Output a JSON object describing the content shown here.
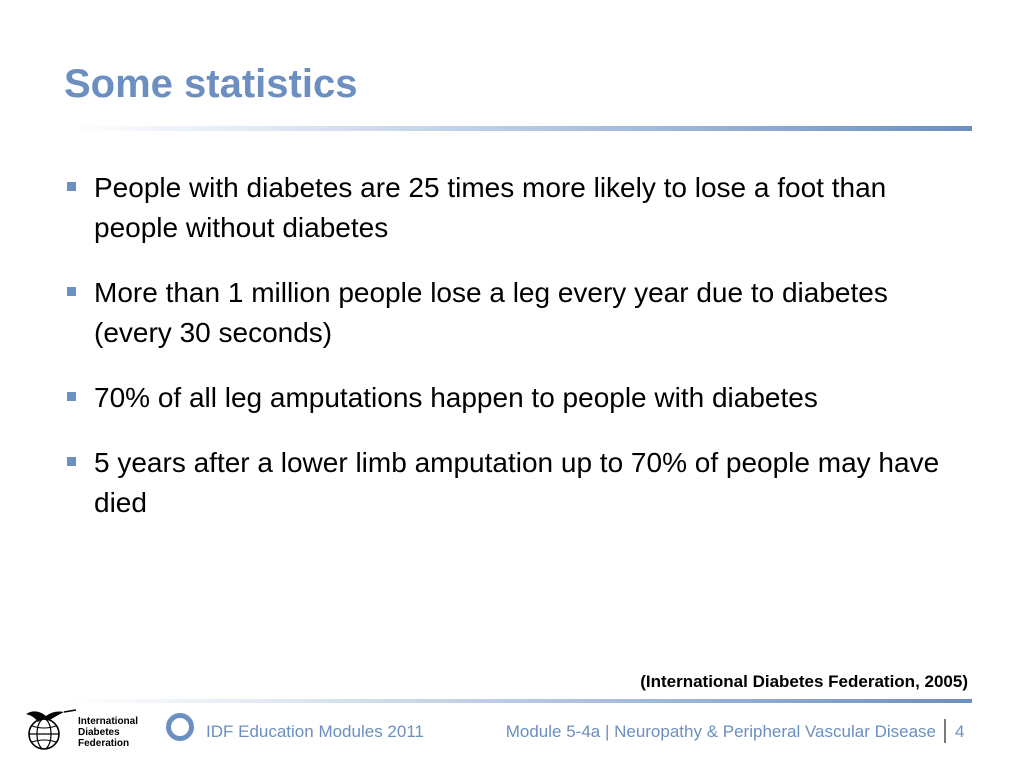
{
  "slide": {
    "title": "Some statistics",
    "bullets": [
      "People with diabetes are 25 times more likely to lose a foot than people without diabetes",
      " More than 1 million people lose a leg every year due to diabetes (every 30 seconds)",
      " 70% of all leg amputations happen to people with diabetes",
      "5 years after a lower limb amputation up to 70% of people may have died"
    ],
    "citation": "(International Diabetes Federation, 2005)"
  },
  "footer": {
    "logo_text": "International\nDiabetes\nFederation",
    "modules_label": "IDF Education Modules 2011",
    "module_title": "Module 5-4a | Neuropathy & Peripheral Vascular Disease",
    "page_number": "4"
  },
  "colors": {
    "accent": "#6b8fc0",
    "text": "#000000"
  }
}
